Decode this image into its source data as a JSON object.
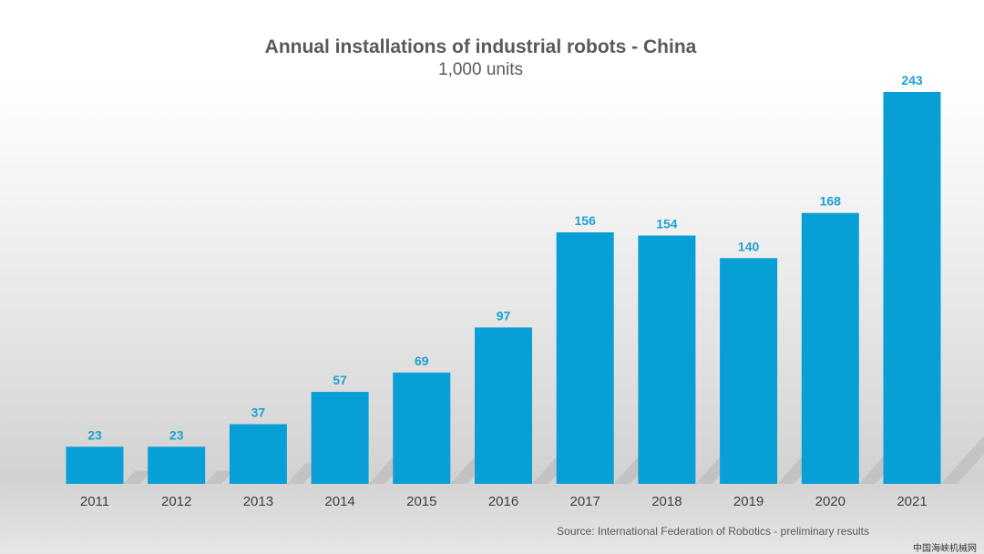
{
  "chart_data": {
    "type": "bar",
    "title": "Annual installations of industrial robots - China",
    "subtitle": "1,000 units",
    "categories": [
      "2011",
      "2012",
      "2013",
      "2014",
      "2015",
      "2016",
      "2017",
      "2018",
      "2019",
      "2020",
      "2021"
    ],
    "values": [
      23,
      23,
      37,
      57,
      69,
      97,
      156,
      154,
      140,
      168,
      243
    ],
    "xlabel": "",
    "ylabel": "",
    "ylim": [
      0,
      243
    ],
    "grid": false,
    "legend": "none",
    "data_labels": true,
    "bar_color": "#089ed6",
    "label_color": "#1f9fd3",
    "tick_color": "#404040"
  },
  "source_note": "Source: International Federation of Robotics - preliminary results",
  "watermark": "中国海峡机械网"
}
